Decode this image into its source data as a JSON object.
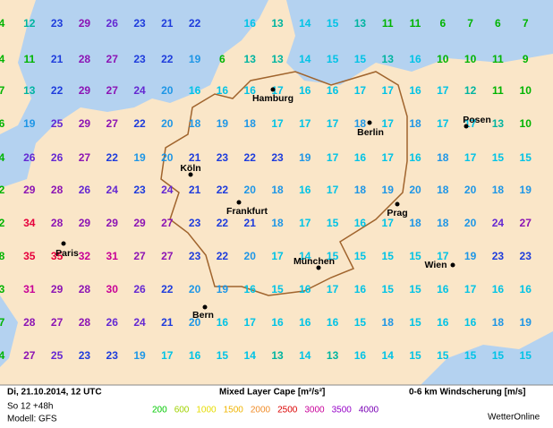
{
  "map": {
    "grid": {
      "rows": [
        [
          4,
          12,
          23,
          29,
          26,
          23,
          21,
          22,
          null,
          16,
          13,
          14,
          15,
          13,
          11,
          11,
          6,
          7,
          6,
          7
        ],
        [
          4,
          11,
          21,
          28,
          27,
          23,
          22,
          19,
          6,
          13,
          13,
          14,
          15,
          15,
          13,
          16,
          10,
          10,
          11,
          9
        ],
        [
          7,
          13,
          22,
          29,
          27,
          24,
          20,
          16,
          16,
          16,
          17,
          16,
          16,
          17,
          17,
          16,
          17,
          12,
          11,
          10
        ],
        [
          6,
          19,
          25,
          29,
          27,
          22,
          20,
          18,
          19,
          18,
          17,
          17,
          17,
          18,
          17,
          18,
          17,
          17,
          13,
          10
        ],
        [
          4,
          26,
          26,
          27,
          22,
          19,
          20,
          21,
          23,
          22,
          23,
          19,
          17,
          16,
          17,
          16,
          18,
          17,
          15,
          15
        ],
        [
          2,
          29,
          28,
          26,
          24,
          23,
          24,
          21,
          22,
          20,
          18,
          16,
          17,
          18,
          19,
          20,
          18,
          20,
          18,
          19
        ],
        [
          2,
          34,
          28,
          29,
          29,
          29,
          27,
          23,
          22,
          21,
          18,
          17,
          15,
          16,
          17,
          18,
          18,
          20,
          24,
          27
        ],
        [
          8,
          35,
          35,
          32,
          31,
          27,
          27,
          23,
          22,
          20,
          17,
          14,
          15,
          15,
          15,
          15,
          17,
          19,
          23,
          23
        ],
        [
          3,
          31,
          29,
          28,
          30,
          26,
          22,
          20,
          19,
          16,
          15,
          16,
          17,
          16,
          15,
          15,
          16,
          17,
          16,
          16
        ],
        [
          7,
          28,
          27,
          28,
          26,
          24,
          21,
          20,
          16,
          17,
          16,
          16,
          16,
          15,
          18,
          15,
          16,
          16,
          18,
          19
        ],
        [
          4,
          27,
          25,
          23,
          23,
          19,
          17,
          16,
          15,
          14,
          13,
          14,
          13,
          16,
          14,
          15,
          15,
          15,
          15,
          15
        ]
      ]
    },
    "cities": [
      {
        "label": "Hamburg"
      },
      {
        "label": "Berlin"
      },
      {
        "label": "Posen"
      },
      {
        "label": "Köln"
      },
      {
        "label": "Frankfurt"
      },
      {
        "label": "Prag"
      },
      {
        "label": "Paris"
      },
      {
        "label": "München"
      },
      {
        "label": "Wien"
      },
      {
        "label": "Bern"
      }
    ]
  },
  "footer": {
    "date": "Di, 21.10.2014, 12 UTC",
    "run": "So 12 +48h",
    "model": "Modell: GFS",
    "cape_title": "Mixed Layer Cape [m²/s²]",
    "shear_title": "0-6 km Windscherung [m/s]",
    "legend": [
      {
        "label": "200",
        "color": "#00c800"
      },
      {
        "label": "600",
        "color": "#a0d200"
      },
      {
        "label": "1000",
        "color": "#e6dc00"
      },
      {
        "label": "1500",
        "color": "#f0b400"
      },
      {
        "label": "2000",
        "color": "#f08c28"
      },
      {
        "label": "2500",
        "color": "#dc0000"
      },
      {
        "label": "3000",
        "color": "#c8009a"
      },
      {
        "label": "3500",
        "color": "#9600c8"
      },
      {
        "label": "4000",
        "color": "#7800b4"
      }
    ],
    "brand": "WetterOnline"
  }
}
